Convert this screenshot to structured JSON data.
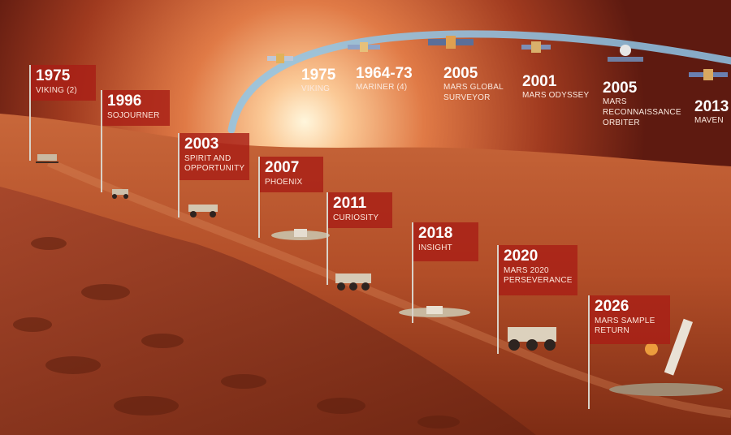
{
  "colors": {
    "sky_top": "#6e1c12",
    "sky_glow": "#fff3d2",
    "ground": "#b5502a",
    "flag": "#a81e16",
    "orbit": "#8fc6e8"
  },
  "surface_missions": [
    {
      "year": "1975",
      "name": "VIKING (2)"
    },
    {
      "year": "1996",
      "name": "SOJOURNER"
    },
    {
      "year": "2003",
      "name": "SPIRIT AND OPPORTUNITY"
    },
    {
      "year": "2007",
      "name": "PHOENIX"
    },
    {
      "year": "2011",
      "name": "CURIOSITY"
    },
    {
      "year": "2018",
      "name": "INSIGHT"
    },
    {
      "year": "2020",
      "name": "MARS 2020 PERSEVERANCE"
    },
    {
      "year": "2026",
      "name": "MARS SAMPLE RETURN"
    }
  ],
  "orbital_missions": [
    {
      "year": "1975",
      "name": "VIKING"
    },
    {
      "year": "1964-73",
      "name": "MARINER (4)"
    },
    {
      "year": "2005",
      "name": "MARS GLOBAL SURVEYOR"
    },
    {
      "year": "2001",
      "name": "MARS ODYSSEY"
    },
    {
      "year": "2005",
      "name": "MARS RECONNAISSANCE ORBITER"
    },
    {
      "year": "2013",
      "name": "MAVEN"
    }
  ]
}
